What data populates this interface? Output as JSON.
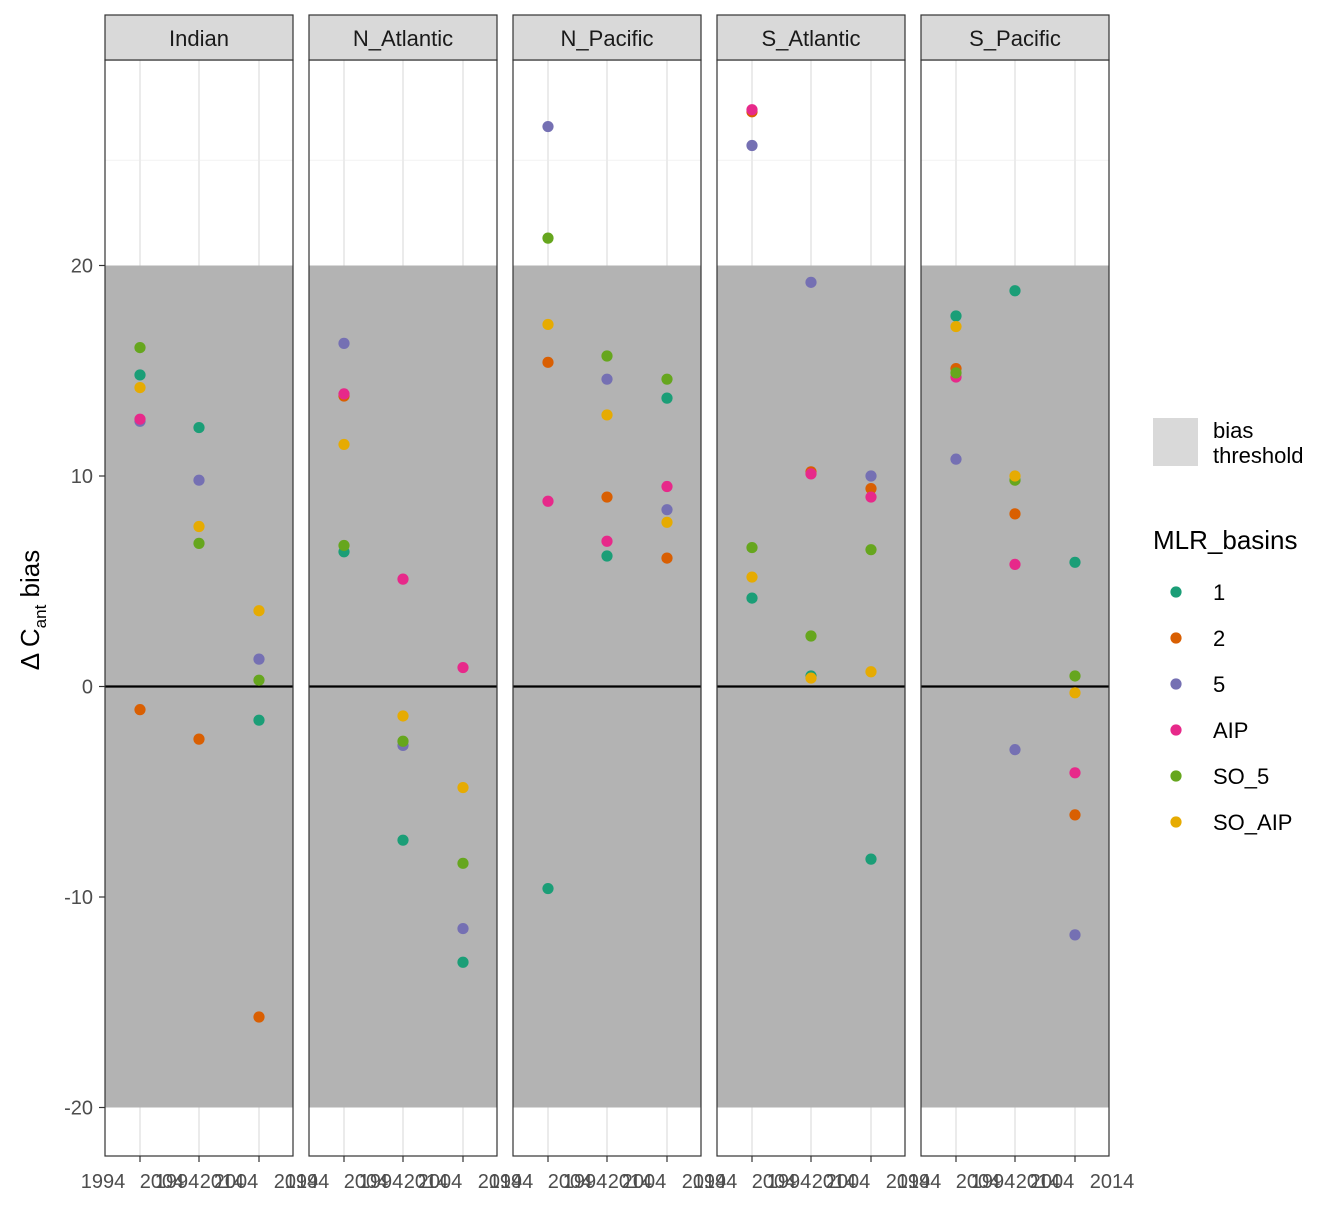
{
  "chart_data": {
    "type": "scatter",
    "facets": [
      "Indian",
      "N_Atlantic",
      "N_Pacific",
      "S_Atlantic",
      "S_Pacific"
    ],
    "x_tick_labels": [
      "1994",
      "1994",
      "2004",
      "2004",
      "2014",
      "2014"
    ],
    "x_categories": [
      1994,
      2004,
      2014
    ],
    "y_ticks": [
      -20,
      -10,
      0,
      10,
      20
    ],
    "ylim": [
      -22.3,
      29.8
    ],
    "ylabel_delta": "Δ C",
    "ylabel_sub": "ant",
    "ylabel_rest": " bias",
    "threshold": [
      -20,
      20
    ],
    "hline": 0,
    "colors": {
      "1": "#1b9e77",
      "2": "#d95f02",
      "5": "#7570b3",
      "AIP": "#e7298a",
      "SO_5": "#66a61e",
      "SO_AIP": "#e6ab02"
    },
    "threshold_fill": "#b3b3b3",
    "legend": {
      "fill_label_1": "bias",
      "fill_label_2": "threshold",
      "fill_color": "#d9d9d9",
      "title": "MLR_basins",
      "entries": [
        "1",
        "2",
        "5",
        "AIP",
        "SO_5",
        "SO_AIP"
      ]
    },
    "series": [
      {
        "facet": "Indian",
        "x": 1994,
        "name": "1",
        "y": 14.8
      },
      {
        "facet": "Indian",
        "x": 1994,
        "name": "2",
        "y": -1.1
      },
      {
        "facet": "Indian",
        "x": 1994,
        "name": "5",
        "y": 12.6
      },
      {
        "facet": "Indian",
        "x": 1994,
        "name": "AIP",
        "y": 12.7
      },
      {
        "facet": "Indian",
        "x": 1994,
        "name": "SO_5",
        "y": 16.1
      },
      {
        "facet": "Indian",
        "x": 1994,
        "name": "SO_AIP",
        "y": 14.2
      },
      {
        "facet": "Indian",
        "x": 2004,
        "name": "1",
        "y": 12.3
      },
      {
        "facet": "Indian",
        "x": 2004,
        "name": "2",
        "y": -2.5
      },
      {
        "facet": "Indian",
        "x": 2004,
        "name": "5",
        "y": 9.8
      },
      {
        "facet": "Indian",
        "x": 2004,
        "name": "SO_5",
        "y": 6.8
      },
      {
        "facet": "Indian",
        "x": 2004,
        "name": "SO_AIP",
        "y": 7.6
      },
      {
        "facet": "Indian",
        "x": 2014,
        "name": "1",
        "y": -1.6
      },
      {
        "facet": "Indian",
        "x": 2014,
        "name": "2",
        "y": -15.7
      },
      {
        "facet": "Indian",
        "x": 2014,
        "name": "5",
        "y": 1.3
      },
      {
        "facet": "Indian",
        "x": 2014,
        "name": "SO_5",
        "y": 0.3
      },
      {
        "facet": "Indian",
        "x": 2014,
        "name": "SO_AIP",
        "y": 3.6
      },
      {
        "facet": "N_Atlantic",
        "x": 1994,
        "name": "1",
        "y": 6.4
      },
      {
        "facet": "N_Atlantic",
        "x": 1994,
        "name": "2",
        "y": 13.8
      },
      {
        "facet": "N_Atlantic",
        "x": 1994,
        "name": "5",
        "y": 16.3
      },
      {
        "facet": "N_Atlantic",
        "x": 1994,
        "name": "AIP",
        "y": 13.9
      },
      {
        "facet": "N_Atlantic",
        "x": 1994,
        "name": "SO_5",
        "y": 6.7
      },
      {
        "facet": "N_Atlantic",
        "x": 1994,
        "name": "SO_AIP",
        "y": 11.5
      },
      {
        "facet": "N_Atlantic",
        "x": 2004,
        "name": "1",
        "y": -7.3
      },
      {
        "facet": "N_Atlantic",
        "x": 2004,
        "name": "5",
        "y": -2.8
      },
      {
        "facet": "N_Atlantic",
        "x": 2004,
        "name": "AIP",
        "y": 5.1
      },
      {
        "facet": "N_Atlantic",
        "x": 2004,
        "name": "SO_5",
        "y": -2.6
      },
      {
        "facet": "N_Atlantic",
        "x": 2004,
        "name": "SO_AIP",
        "y": -1.4
      },
      {
        "facet": "N_Atlantic",
        "x": 2014,
        "name": "1",
        "y": -13.1
      },
      {
        "facet": "N_Atlantic",
        "x": 2014,
        "name": "5",
        "y": -11.5
      },
      {
        "facet": "N_Atlantic",
        "x": 2014,
        "name": "AIP",
        "y": 0.9
      },
      {
        "facet": "N_Atlantic",
        "x": 2014,
        "name": "SO_5",
        "y": -8.4
      },
      {
        "facet": "N_Atlantic",
        "x": 2014,
        "name": "SO_AIP",
        "y": -4.8
      },
      {
        "facet": "N_Pacific",
        "x": 1994,
        "name": "1",
        "y": -9.6
      },
      {
        "facet": "N_Pacific",
        "x": 1994,
        "name": "2",
        "y": 15.4
      },
      {
        "facet": "N_Pacific",
        "x": 1994,
        "name": "5",
        "y": 26.6
      },
      {
        "facet": "N_Pacific",
        "x": 1994,
        "name": "AIP",
        "y": 8.8
      },
      {
        "facet": "N_Pacific",
        "x": 1994,
        "name": "SO_5",
        "y": 21.3
      },
      {
        "facet": "N_Pacific",
        "x": 1994,
        "name": "SO_AIP",
        "y": 17.2
      },
      {
        "facet": "N_Pacific",
        "x": 2004,
        "name": "1",
        "y": 6.2
      },
      {
        "facet": "N_Pacific",
        "x": 2004,
        "name": "2",
        "y": 9.0
      },
      {
        "facet": "N_Pacific",
        "x": 2004,
        "name": "5",
        "y": 14.6
      },
      {
        "facet": "N_Pacific",
        "x": 2004,
        "name": "AIP",
        "y": 6.9
      },
      {
        "facet": "N_Pacific",
        "x": 2004,
        "name": "SO_5",
        "y": 15.7
      },
      {
        "facet": "N_Pacific",
        "x": 2004,
        "name": "SO_AIP",
        "y": 12.9
      },
      {
        "facet": "N_Pacific",
        "x": 2014,
        "name": "1",
        "y": 13.7
      },
      {
        "facet": "N_Pacific",
        "x": 2014,
        "name": "2",
        "y": 6.1
      },
      {
        "facet": "N_Pacific",
        "x": 2014,
        "name": "5",
        "y": 8.4
      },
      {
        "facet": "N_Pacific",
        "x": 2014,
        "name": "AIP",
        "y": 9.5
      },
      {
        "facet": "N_Pacific",
        "x": 2014,
        "name": "SO_5",
        "y": 14.6
      },
      {
        "facet": "N_Pacific",
        "x": 2014,
        "name": "SO_AIP",
        "y": 7.8
      },
      {
        "facet": "S_Atlantic",
        "x": 1994,
        "name": "1",
        "y": 4.2
      },
      {
        "facet": "S_Atlantic",
        "x": 1994,
        "name": "2",
        "y": 27.3
      },
      {
        "facet": "S_Atlantic",
        "x": 1994,
        "name": "5",
        "y": 25.7
      },
      {
        "facet": "S_Atlantic",
        "x": 1994,
        "name": "AIP",
        "y": 27.4
      },
      {
        "facet": "S_Atlantic",
        "x": 1994,
        "name": "SO_5",
        "y": 6.6
      },
      {
        "facet": "S_Atlantic",
        "x": 1994,
        "name": "SO_AIP",
        "y": 5.2
      },
      {
        "facet": "S_Atlantic",
        "x": 2004,
        "name": "1",
        "y": 0.5
      },
      {
        "facet": "S_Atlantic",
        "x": 2004,
        "name": "2",
        "y": 10.2
      },
      {
        "facet": "S_Atlantic",
        "x": 2004,
        "name": "5",
        "y": 19.2
      },
      {
        "facet": "S_Atlantic",
        "x": 2004,
        "name": "AIP",
        "y": 10.1
      },
      {
        "facet": "S_Atlantic",
        "x": 2004,
        "name": "SO_5",
        "y": 2.4
      },
      {
        "facet": "S_Atlantic",
        "x": 2004,
        "name": "SO_AIP",
        "y": 0.4
      },
      {
        "facet": "S_Atlantic",
        "x": 2014,
        "name": "1",
        "y": -8.2
      },
      {
        "facet": "S_Atlantic",
        "x": 2014,
        "name": "2",
        "y": 9.4
      },
      {
        "facet": "S_Atlantic",
        "x": 2014,
        "name": "5",
        "y": 10.0
      },
      {
        "facet": "S_Atlantic",
        "x": 2014,
        "name": "AIP",
        "y": 9.0
      },
      {
        "facet": "S_Atlantic",
        "x": 2014,
        "name": "SO_5",
        "y": 6.5
      },
      {
        "facet": "S_Atlantic",
        "x": 2014,
        "name": "SO_AIP",
        "y": 0.7
      },
      {
        "facet": "S_Pacific",
        "x": 1994,
        "name": "1",
        "y": 17.6
      },
      {
        "facet": "S_Pacific",
        "x": 1994,
        "name": "2",
        "y": 15.1
      },
      {
        "facet": "S_Pacific",
        "x": 1994,
        "name": "5",
        "y": 10.8
      },
      {
        "facet": "S_Pacific",
        "x": 1994,
        "name": "AIP",
        "y": 14.7
      },
      {
        "facet": "S_Pacific",
        "x": 1994,
        "name": "SO_5",
        "y": 14.9
      },
      {
        "facet": "S_Pacific",
        "x": 1994,
        "name": "SO_AIP",
        "y": 17.1
      },
      {
        "facet": "S_Pacific",
        "x": 2004,
        "name": "1",
        "y": 18.8
      },
      {
        "facet": "S_Pacific",
        "x": 2004,
        "name": "2",
        "y": 8.2
      },
      {
        "facet": "S_Pacific",
        "x": 2004,
        "name": "5",
        "y": -3.0
      },
      {
        "facet": "S_Pacific",
        "x": 2004,
        "name": "AIP",
        "y": 5.8
      },
      {
        "facet": "S_Pacific",
        "x": 2004,
        "name": "SO_5",
        "y": 9.8
      },
      {
        "facet": "S_Pacific",
        "x": 2004,
        "name": "SO_AIP",
        "y": 10.0
      },
      {
        "facet": "S_Pacific",
        "x": 2014,
        "name": "1",
        "y": 5.9
      },
      {
        "facet": "S_Pacific",
        "x": 2014,
        "name": "2",
        "y": -6.1
      },
      {
        "facet": "S_Pacific",
        "x": 2014,
        "name": "5",
        "y": -11.8
      },
      {
        "facet": "S_Pacific",
        "x": 2014,
        "name": "AIP",
        "y": -4.1
      },
      {
        "facet": "S_Pacific",
        "x": 2014,
        "name": "SO_5",
        "y": 0.5
      },
      {
        "facet": "S_Pacific",
        "x": 2014,
        "name": "SO_AIP",
        "y": -0.3
      }
    ]
  }
}
